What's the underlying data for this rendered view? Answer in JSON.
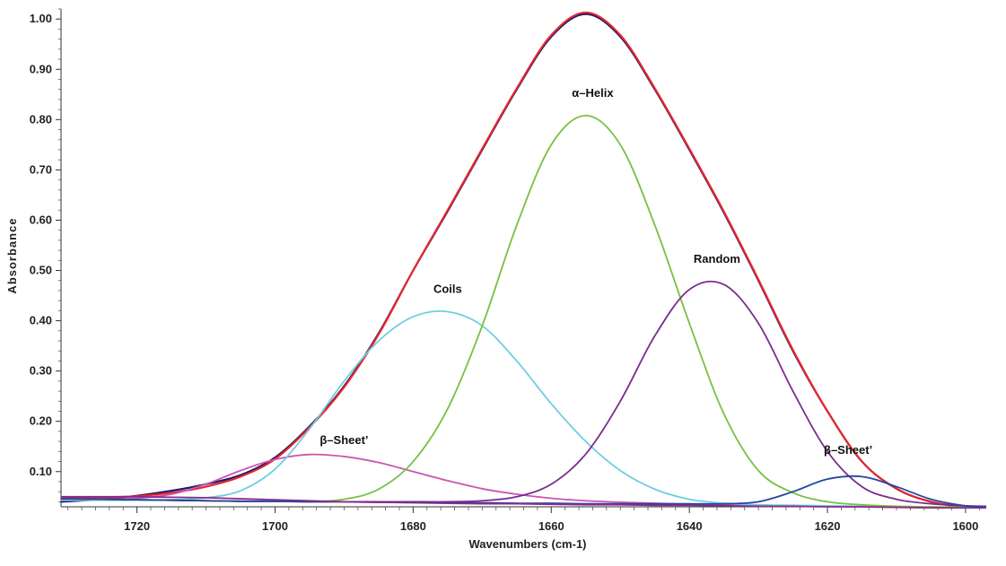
{
  "chart_data": {
    "type": "line",
    "title": "",
    "xlabel": "Wavenumbers (cm-1)",
    "ylabel": "Absorbance",
    "xlim": [
      1731,
      1597
    ],
    "ylim": [
      0.03,
      1.02
    ],
    "x_reversed": true,
    "grid": false,
    "legend": "none",
    "x_ticks": [
      {
        "value": 1720,
        "label": "1720"
      },
      {
        "value": 1700,
        "label": "1700"
      },
      {
        "value": 1680,
        "label": "1680"
      },
      {
        "value": 1660,
        "label": "1660"
      },
      {
        "value": 1640,
        "label": "1640"
      },
      {
        "value": 1620,
        "label": "1620"
      },
      {
        "value": 1600,
        "label": "1600"
      }
    ],
    "y_ticks": [
      {
        "value": 0.1,
        "label": "0.10"
      },
      {
        "value": 0.2,
        "label": "0.20"
      },
      {
        "value": 0.3,
        "label": "0.30"
      },
      {
        "value": 0.4,
        "label": "0.40"
      },
      {
        "value": 0.5,
        "label": "0.50"
      },
      {
        "value": 0.6,
        "label": "0.60"
      },
      {
        "value": 0.7,
        "label": "0.70"
      },
      {
        "value": 0.8,
        "label": "0.80"
      },
      {
        "value": 0.9,
        "label": "0.90"
      },
      {
        "value": 1.0,
        "label": "1.00"
      }
    ],
    "x": [
      1731,
      1725,
      1720,
      1715,
      1710,
      1705,
      1700,
      1695,
      1690,
      1685,
      1680,
      1675,
      1670,
      1665,
      1660,
      1655,
      1650,
      1645,
      1640,
      1635,
      1630,
      1625,
      1620,
      1615,
      1610,
      1605,
      1600,
      1597
    ],
    "series": [
      {
        "color": "#1a1a6e",
        "values": [
          0.04,
          0.045,
          0.052,
          0.062,
          0.075,
          0.093,
          0.128,
          0.19,
          0.27,
          0.375,
          0.5,
          0.618,
          0.74,
          0.86,
          0.965,
          1.01,
          0.965,
          0.86,
          0.74,
          0.615,
          0.48,
          0.34,
          0.22,
          0.12,
          0.066,
          0.04,
          0.03,
          0.031
        ]
      },
      {
        "color": "#e8262a",
        "values": [
          0.048,
          0.049,
          0.051,
          0.058,
          0.07,
          0.09,
          0.125,
          0.188,
          0.268,
          0.373,
          0.5,
          0.62,
          0.742,
          0.862,
          0.968,
          1.013,
          0.968,
          0.862,
          0.742,
          0.617,
          0.482,
          0.342,
          0.22,
          0.12,
          0.066,
          0.04,
          0.03,
          0.029
        ]
      },
      {
        "color": "#cc55b0",
        "values": [
          0.045,
          0.045,
          0.047,
          0.055,
          0.075,
          0.102,
          0.124,
          0.134,
          0.13,
          0.118,
          0.1,
          0.082,
          0.066,
          0.055,
          0.047,
          0.042,
          0.039,
          0.037,
          0.035,
          0.034,
          0.033,
          0.032,
          0.031,
          0.03,
          0.029,
          0.029,
          0.028,
          0.028
        ]
      },
      {
        "color": "#6fcde0",
        "values": [
          0.043,
          0.043,
          0.043,
          0.044,
          0.048,
          0.062,
          0.105,
          0.185,
          0.28,
          0.36,
          0.408,
          0.418,
          0.39,
          0.32,
          0.235,
          0.16,
          0.102,
          0.065,
          0.045,
          0.037,
          0.034,
          0.033,
          0.032,
          0.031,
          0.03,
          0.029,
          0.028,
          0.028
        ]
      },
      {
        "color": "#78c040",
        "values": [
          0.046,
          0.045,
          0.044,
          0.043,
          0.042,
          0.041,
          0.041,
          0.04,
          0.045,
          0.065,
          0.12,
          0.225,
          0.39,
          0.59,
          0.75,
          0.808,
          0.75,
          0.59,
          0.395,
          0.215,
          0.102,
          0.058,
          0.04,
          0.034,
          0.031,
          0.03,
          0.029,
          0.029
        ]
      },
      {
        "color": "#7b2c8c",
        "values": [
          0.046,
          0.045,
          0.044,
          0.043,
          0.042,
          0.041,
          0.041,
          0.04,
          0.04,
          0.04,
          0.04,
          0.04,
          0.042,
          0.05,
          0.075,
          0.135,
          0.24,
          0.37,
          0.462,
          0.472,
          0.395,
          0.26,
          0.14,
          0.07,
          0.045,
          0.036,
          0.032,
          0.031
        ]
      },
      {
        "color": "#2446a0",
        "values": [
          0.046,
          0.045,
          0.044,
          0.043,
          0.042,
          0.041,
          0.041,
          0.04,
          0.04,
          0.039,
          0.039,
          0.038,
          0.038,
          0.037,
          0.037,
          0.036,
          0.036,
          0.036,
          0.036,
          0.036,
          0.04,
          0.06,
          0.085,
          0.09,
          0.07,
          0.045,
          0.032,
          0.03
        ]
      },
      {
        "color": "#8a2a8a",
        "values": [
          0.05,
          0.05,
          0.05,
          0.049,
          0.048,
          0.046,
          0.044,
          0.042,
          0.04,
          0.039,
          0.038,
          0.037,
          0.036,
          0.036,
          0.035,
          0.034,
          0.034,
          0.033,
          0.033,
          0.032,
          0.031,
          0.031,
          0.03,
          0.03,
          0.029,
          0.028,
          0.028,
          0.028
        ]
      }
    ],
    "annotations": [
      {
        "text": "α–Helix",
        "x": 1654,
        "y": 0.845
      },
      {
        "text": "Random",
        "x": 1636,
        "y": 0.515
      },
      {
        "text": "Coils",
        "x": 1675,
        "y": 0.455
      },
      {
        "text": "β–Sheet’",
        "x": 1690,
        "y": 0.155
      },
      {
        "text": "β–Sheet’",
        "x": 1617,
        "y": 0.135
      }
    ]
  }
}
